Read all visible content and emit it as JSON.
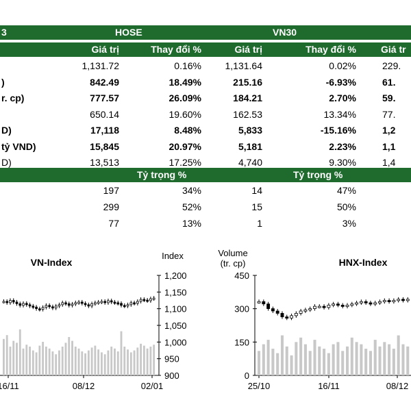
{
  "table": {
    "top_headers": {
      "first": "3",
      "hose": "HOSE",
      "vn30": "VN30"
    },
    "sub_headers": {
      "hose_value": "Giá trị",
      "hose_change": "Thay đổi %",
      "vn30_value": "Giá trị",
      "vn30_change": "Thay đổi %",
      "next_value": "Giá tr"
    },
    "rows": [
      {
        "label": "",
        "hose_value": "1,131.72",
        "hose_change": "0.16%",
        "vn30_value": "1,131.64",
        "vn30_change": "0.02%",
        "next": "229.",
        "bold": false
      },
      {
        "label": ")",
        "hose_value": "842.49",
        "hose_change": "18.49%",
        "vn30_value": "215.16",
        "vn30_change": "-6.93%",
        "next": "61.",
        "bold": true
      },
      {
        "label": "r. cp)",
        "hose_value": "777.57",
        "hose_change": "26.09%",
        "vn30_value": "184.21",
        "vn30_change": "2.70%",
        "next": "59.",
        "bold": true
      },
      {
        "label": "",
        "hose_value": "650.14",
        "hose_change": "19.60%",
        "vn30_value": "162.53",
        "vn30_change": "13.34%",
        "next": "77.",
        "bold": false
      },
      {
        "label": "D)",
        "hose_value": "17,118",
        "hose_change": "8.48%",
        "vn30_value": "5,833",
        "vn30_change": "-15.16%",
        "next": "1,2",
        "bold": true
      },
      {
        "label": "tỷ VND)",
        "hose_value": "15,845",
        "hose_change": "20.97%",
        "vn30_value": "5,181",
        "vn30_change": "2.23%",
        "next": "1,1",
        "bold": true
      },
      {
        "label": "D)",
        "hose_value": "13,513",
        "hose_change": "17.25%",
        "vn30_value": "4,740",
        "vn30_change": "9.30%",
        "next": "1,4",
        "bold": false
      }
    ],
    "ratio_header": {
      "hose": "Tỷ trọng %",
      "vn30": "Tỷ trọng %"
    },
    "ratio_rows": [
      {
        "hose_count": "197",
        "hose_pct": "34%",
        "vn30_count": "14",
        "vn30_pct": "47%"
      },
      {
        "hose_count": "299",
        "hose_pct": "52%",
        "vn30_count": "15",
        "vn30_pct": "50%"
      },
      {
        "hose_count": "77",
        "hose_pct": "13%",
        "vn30_count": "1",
        "vn30_pct": "3%"
      }
    ]
  },
  "chart_data": [
    {
      "type": "candlestick",
      "title": "VN-Index",
      "y_axis_label": "Index",
      "y_ticks": [
        "1,200",
        "1,150",
        "1,100",
        "1,050",
        "1,000",
        "950",
        "900"
      ],
      "ylim": [
        900,
        1200
      ],
      "x_ticks": [
        "16/11",
        "08/12",
        "02/01"
      ],
      "index_close": [
        1122,
        1118,
        1125,
        1120,
        1115,
        1110,
        1116,
        1112,
        1108,
        1105,
        1100,
        1098,
        1104,
        1110,
        1106,
        1102,
        1108,
        1112,
        1118,
        1115,
        1110,
        1114,
        1118,
        1120,
        1116,
        1112,
        1108,
        1115,
        1118,
        1120,
        1122,
        1118,
        1124,
        1120,
        1118,
        1116,
        1110,
        1108,
        1112,
        1118,
        1116,
        1122,
        1128,
        1126,
        1124,
        1130,
        1132
      ],
      "volume": [
        380,
        420,
        300,
        360,
        340,
        480,
        280,
        320,
        300,
        260,
        240,
        310,
        350,
        300,
        280,
        250,
        220,
        260,
        300,
        340,
        400,
        360,
        300,
        280,
        250,
        230,
        260,
        290,
        310,
        270,
        240,
        220,
        260,
        300,
        280,
        250,
        460,
        300,
        270,
        240,
        260,
        290,
        330,
        310,
        280,
        300,
        320
      ]
    },
    {
      "type": "candlestick",
      "title": "HNX-Index",
      "y_axis_label": "Volume\n(tr. cp)",
      "y_ticks": [
        "450",
        "300",
        "150",
        "0"
      ],
      "ylim": [
        0,
        450
      ],
      "x_ticks": [
        "25/10",
        "16/11",
        "08/12"
      ],
      "index_close": [
        232,
        230,
        226,
        224,
        222,
        219,
        218,
        220,
        222,
        224,
        225,
        226,
        228,
        228,
        227,
        229,
        230,
        229,
        228,
        229,
        230,
        231,
        232,
        231,
        230,
        231,
        232,
        233,
        232,
        233,
        234,
        233,
        234
      ],
      "volume": [
        110,
        140,
        160,
        120,
        100,
        180,
        130,
        90,
        150,
        170,
        140,
        110,
        160,
        130,
        120,
        100,
        140,
        150,
        110,
        130,
        170,
        150,
        140,
        120,
        110,
        160,
        130,
        150,
        140,
        120,
        180,
        140,
        130
      ]
    }
  ]
}
